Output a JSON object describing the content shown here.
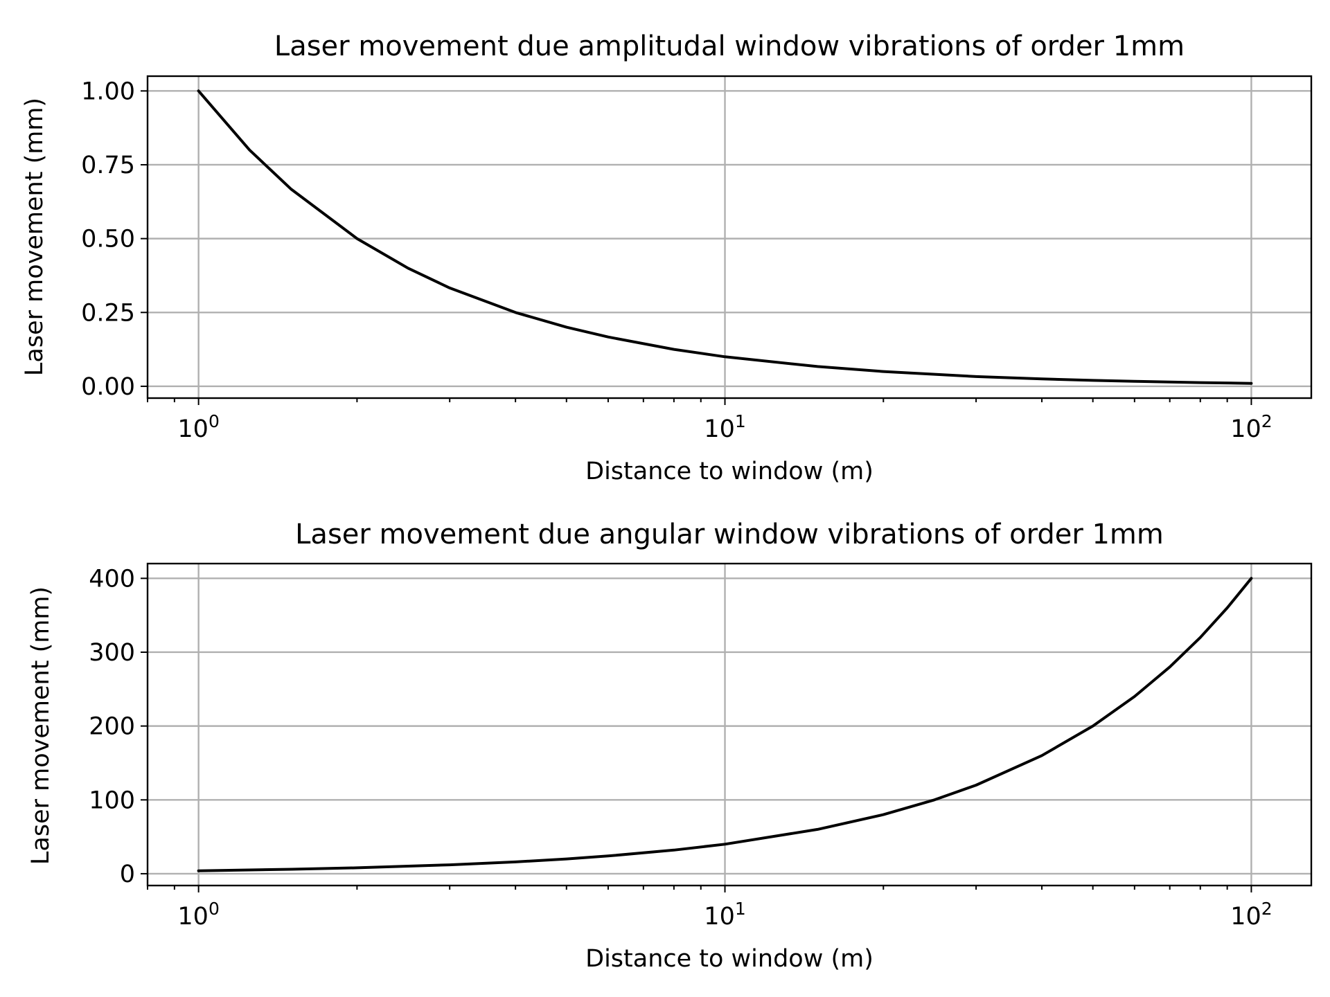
{
  "chart_data": [
    {
      "type": "line",
      "title": "Laser movement due amplitudal window vibrations of order 1mm",
      "xlabel": "Distance to window (m)",
      "ylabel": "Laser movement (mm)",
      "xscale": "log",
      "xlim": [
        0.8,
        130
      ],
      "ylim": [
        -0.04,
        1.05
      ],
      "xticks": [
        {
          "value": 1,
          "base": "10",
          "exp": "0"
        },
        {
          "value": 10,
          "base": "10",
          "exp": "1"
        },
        {
          "value": 100,
          "base": "10",
          "exp": "2"
        }
      ],
      "yticks": [
        {
          "value": 0.0,
          "label": "0.00"
        },
        {
          "value": 0.25,
          "label": "0.25"
        },
        {
          "value": 0.5,
          "label": "0.50"
        },
        {
          "value": 0.75,
          "label": "0.75"
        },
        {
          "value": 1.0,
          "label": "1.00"
        }
      ],
      "grid": true,
      "series": [
        {
          "color": "#000000",
          "x": [
            1,
            1.25,
            1.5,
            2,
            2.5,
            3,
            4,
            5,
            6,
            8,
            10,
            15,
            20,
            30,
            40,
            50,
            60,
            80,
            100
          ],
          "y": [
            1.0,
            0.8,
            0.667,
            0.5,
            0.4,
            0.333,
            0.25,
            0.2,
            0.167,
            0.125,
            0.1,
            0.067,
            0.05,
            0.033,
            0.025,
            0.02,
            0.017,
            0.0125,
            0.01
          ]
        }
      ]
    },
    {
      "type": "line",
      "title": "Laser movement due angular window vibrations of order 1mm",
      "xlabel": "Distance to window (m)",
      "ylabel": "Laser movement (mm)",
      "xscale": "log",
      "xlim": [
        0.8,
        130
      ],
      "ylim": [
        -16,
        420
      ],
      "xticks": [
        {
          "value": 1,
          "base": "10",
          "exp": "0"
        },
        {
          "value": 10,
          "base": "10",
          "exp": "1"
        },
        {
          "value": 100,
          "base": "10",
          "exp": "2"
        }
      ],
      "yticks": [
        {
          "value": 0,
          "label": "0"
        },
        {
          "value": 100,
          "label": "100"
        },
        {
          "value": 200,
          "label": "200"
        },
        {
          "value": 300,
          "label": "300"
        },
        {
          "value": 400,
          "label": "400"
        }
      ],
      "grid": true,
      "series": [
        {
          "color": "#000000",
          "x": [
            1,
            1.5,
            2,
            3,
            4,
            5,
            6,
            8,
            10,
            15,
            20,
            25,
            30,
            40,
            50,
            60,
            70,
            80,
            90,
            100
          ],
          "y": [
            4,
            6,
            8,
            12,
            16,
            20,
            24,
            32,
            40,
            60,
            80,
            100,
            120,
            160,
            200,
            240,
            280,
            320,
            360,
            400
          ]
        }
      ]
    }
  ]
}
